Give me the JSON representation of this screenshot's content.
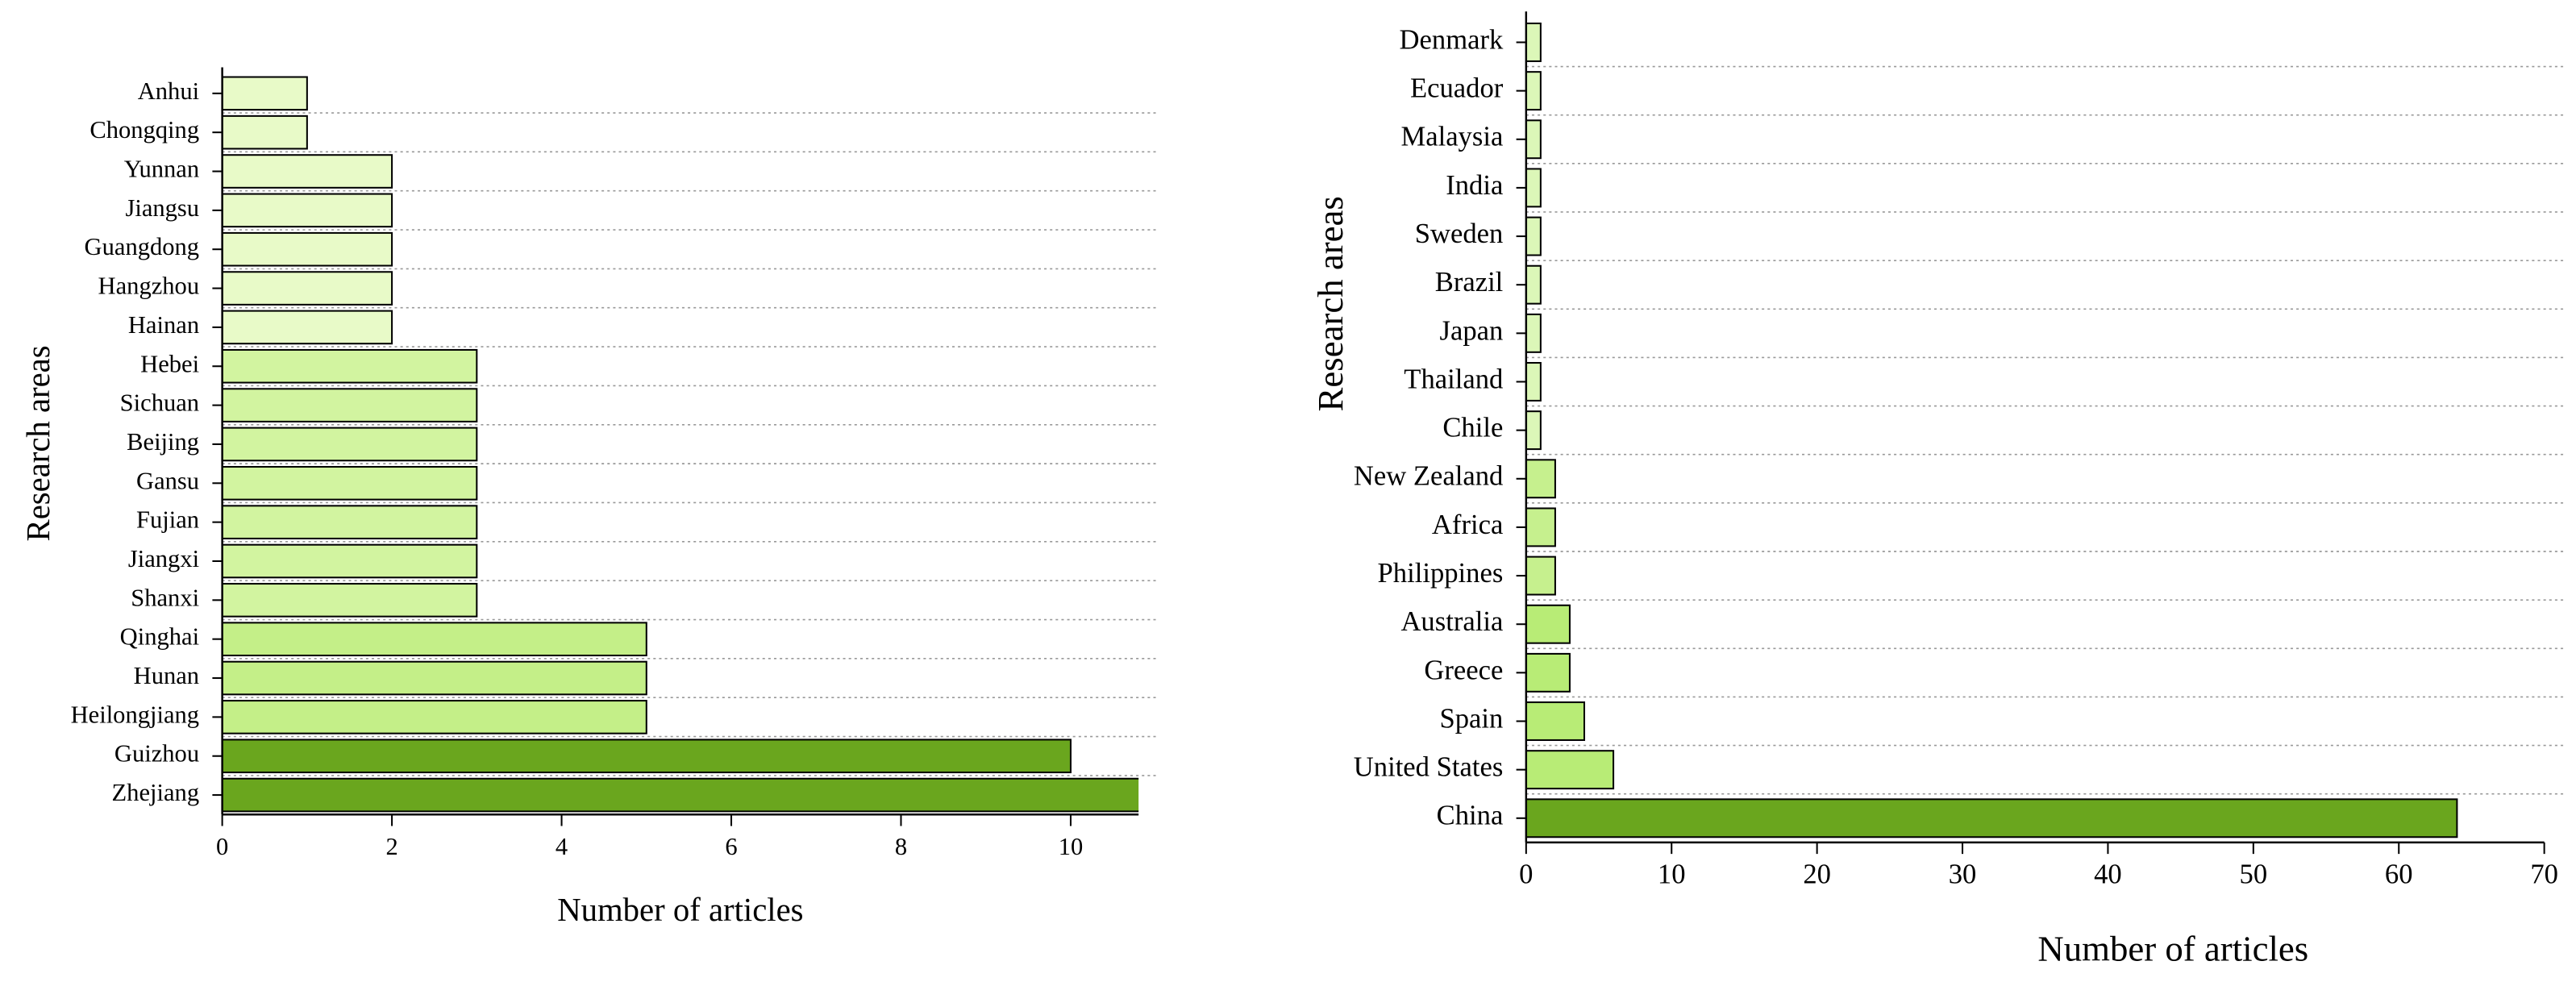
{
  "chart_data": [
    {
      "type": "bar",
      "horizontal": true,
      "categories": [
        "Anhui",
        "Chongqing",
        "Yunnan",
        "Jiangsu",
        "Guangdong",
        "Hangzhou",
        "Hainan",
        "Hebei",
        "Sichuan",
        "Beijing",
        "Gansu",
        "Fujian",
        "Jiangxi",
        "Shanxi",
        "Qinghai",
        "Hunan",
        "Heilongjiang",
        "Guizhou",
        "Zhejiang"
      ],
      "values": [
        1,
        1,
        2,
        2,
        2,
        2,
        2,
        3,
        3,
        3,
        3,
        3,
        3,
        3,
        5,
        5,
        5,
        10,
        11
      ],
      "colors": [
        "#e8fac8",
        "#e8fac8",
        "#e8fac8",
        "#e8fac8",
        "#e8fac8",
        "#e8fac8",
        "#e8fac8",
        "#d2f4a0",
        "#d2f4a0",
        "#d2f4a0",
        "#d2f4a0",
        "#d2f4a0",
        "#d2f4a0",
        "#d2f4a0",
        "#c4ef88",
        "#c4ef88",
        "#c4ef88",
        "#6aa61e",
        "#6aa61e"
      ],
      "xlabel": "Number of articles",
      "ylabel": "Research areas",
      "xlim": [
        0,
        10.8
      ],
      "xticks": [
        0,
        2,
        4,
        6,
        8,
        10
      ],
      "grid": true
    },
    {
      "type": "bar",
      "horizontal": true,
      "categories": [
        "Denmark",
        "Ecuador",
        "Malaysia",
        "India",
        "Sweden",
        "Brazil",
        "Japan",
        "Thailand",
        "Chile",
        "New Zealand",
        "Africa",
        "Philippines",
        "Australia",
        "Greece",
        "Spain",
        "United States",
        "China"
      ],
      "values": [
        1,
        1,
        1,
        1,
        1,
        1,
        1,
        1,
        1,
        2,
        2,
        2,
        3,
        3,
        4,
        6,
        64
      ],
      "colors": [
        "#dcf7b8",
        "#dcf7b8",
        "#dcf7b8",
        "#dcf7b8",
        "#dcf7b8",
        "#dcf7b8",
        "#dcf7b8",
        "#dcf7b8",
        "#dcf7b8",
        "#c6f08e",
        "#c6f08e",
        "#c6f08e",
        "#b8ec76",
        "#b8ec76",
        "#b8ec76",
        "#b8ec76",
        "#6aa61e"
      ],
      "xlabel": "Number of articles",
      "ylabel": "Research areas",
      "xlim": [
        0,
        70
      ],
      "xticks": [
        0,
        10,
        20,
        30,
        40,
        50,
        60,
        70
      ],
      "grid": true
    }
  ]
}
